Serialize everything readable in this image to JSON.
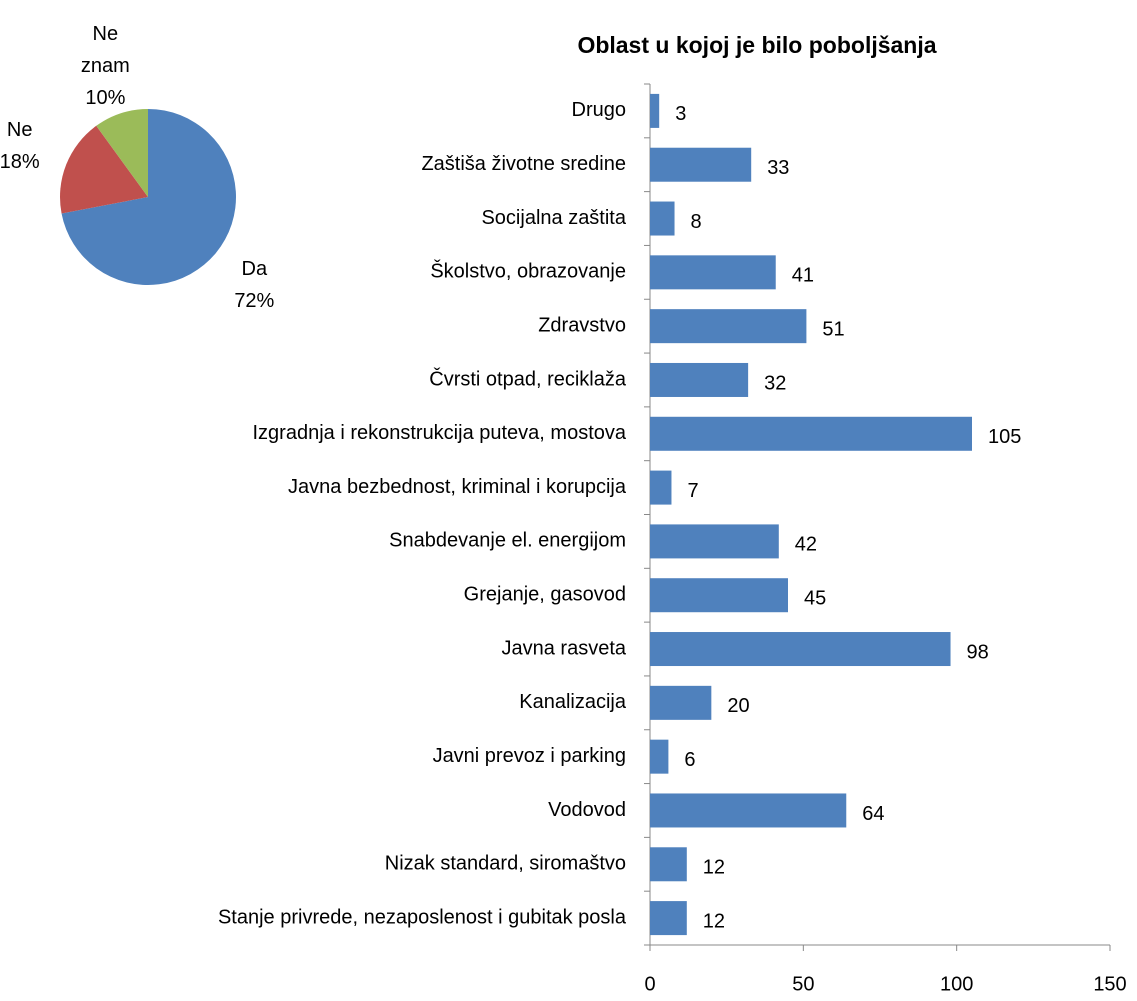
{
  "chart_data": [
    {
      "type": "pie",
      "categories": [
        "Da",
        "Ne",
        "Ne znam"
      ],
      "values": [
        72,
        18,
        10
      ],
      "value_labels": [
        "72%",
        "18%",
        "10%"
      ],
      "colors": [
        "#4f81bd",
        "#c0504d",
        "#9bbb59"
      ]
    },
    {
      "type": "bar",
      "title": "Oblast u kojoj je bilo poboljšanja",
      "orientation": "horizontal",
      "categories": [
        "Drugo",
        "Zaštiša životne sredine",
        "Socijalna zaštita",
        "Školstvo, obrazovanje",
        "Zdravstvo",
        "Čvrsti otpad, reciklaža",
        "Izgradnja i rekonstrukcija puteva, mostova",
        "Javna bezbednost, kriminal i korupcija",
        "Snabdevanje el. energijom",
        "Grejanje, gasovod",
        "Javna rasveta",
        "Kanalizacija",
        "Javni prevoz i parking",
        "Vodovod",
        "Nizak standard, siromaštvo",
        "Stanje privrede, nezaposlenost i gubitak posla"
      ],
      "values": [
        3,
        33,
        8,
        41,
        51,
        32,
        105,
        7,
        42,
        45,
        98,
        20,
        6,
        64,
        12,
        12
      ],
      "color": "#4f81bd",
      "xlim": [
        0,
        150
      ],
      "xticks": [
        0,
        50,
        100,
        150
      ],
      "grid": false
    }
  ]
}
